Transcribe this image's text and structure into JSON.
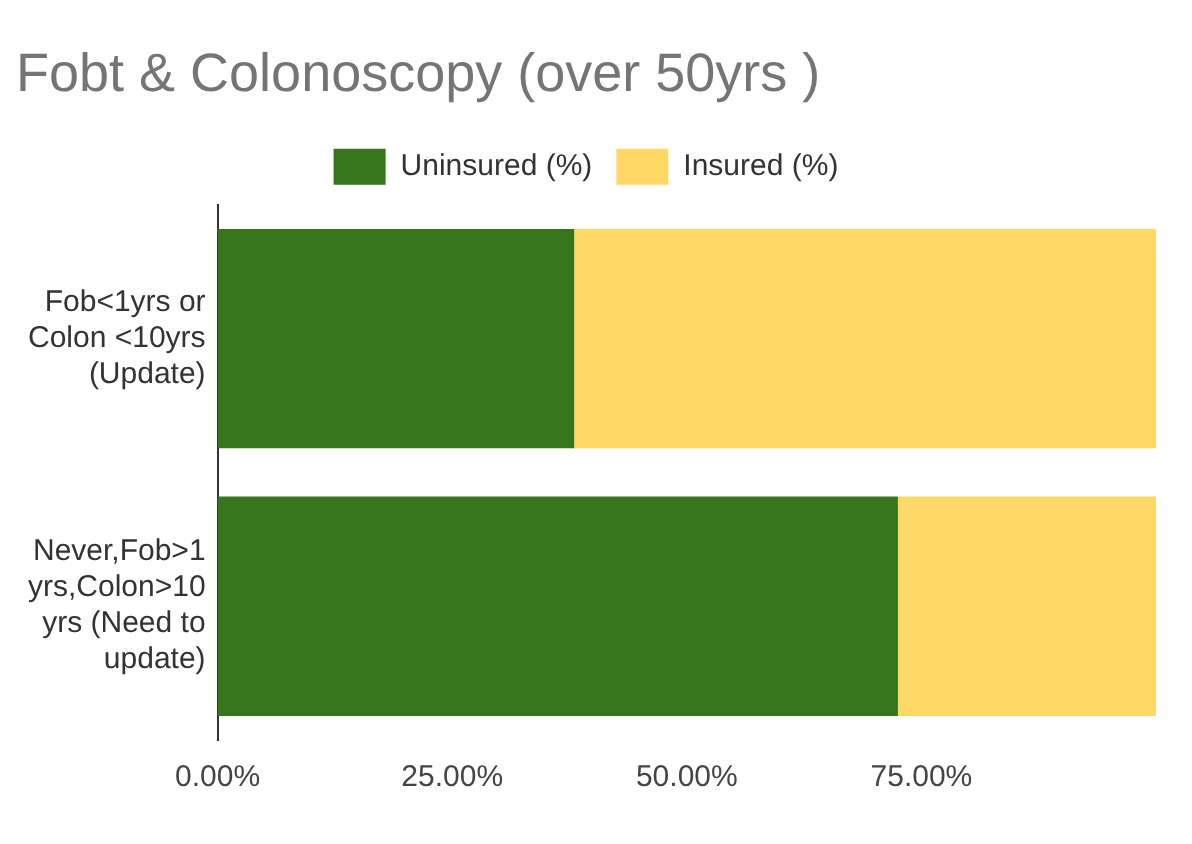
{
  "chart_data": {
    "type": "bar",
    "title": "Fobt & Colonoscopy (over 50yrs )",
    "orientation": "horizontal",
    "stacked": true,
    "legend": "top",
    "grid": false,
    "categories": [
      "Fob<1yrs or Colon <10yrs (Update)",
      "Never,Fob>1 yrs,Colon>10 yrs (Need to update)"
    ],
    "series": [
      {
        "name": "Uninsured (%)",
        "color": "#38761d",
        "values": [
          38,
          72.5
        ]
      },
      {
        "name": "Insured (%)",
        "color": "#ffd966",
        "values": [
          62,
          27.5
        ]
      }
    ],
    "xlim": [
      0,
      100
    ],
    "xticks": [
      {
        "value": 0,
        "label": "0.00%"
      },
      {
        "value": 25,
        "label": "25.00%"
      },
      {
        "value": 50,
        "label": "50.00%"
      },
      {
        "value": 75,
        "label": "75.00%"
      }
    ]
  }
}
